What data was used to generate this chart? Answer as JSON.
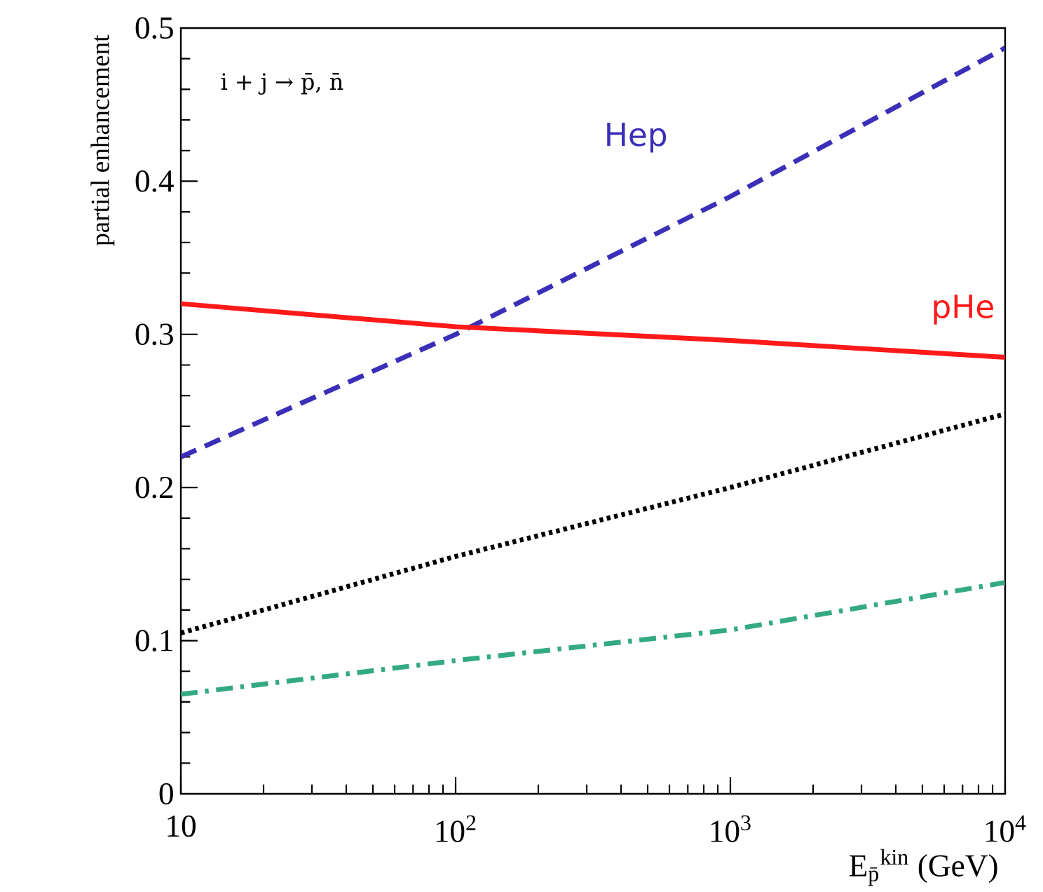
{
  "chart_data": {
    "type": "line",
    "ylabel": "partial enhancement",
    "xlabel": "E$_{p̄}$$^{kin}$ (GeV)",
    "log": "x",
    "grid": false,
    "x": [
      10,
      100,
      1000,
      10000
    ],
    "xlim": [
      10,
      10000
    ],
    "ylim": [
      0,
      0.5
    ],
    "xticks": [
      10,
      {
        "value": 100,
        "label": "10$^{2}$"
      },
      {
        "value": 1000,
        "label": "10$^{3}$"
      },
      {
        "value": 10000,
        "label": "10$^{4}$"
      }
    ],
    "yticks": [
      0,
      0.1,
      0.2,
      0.3,
      0.4,
      0.5
    ],
    "annotations": [
      "i + j → p̄, n̄"
    ],
    "series": [
      {
        "name": "Hep",
        "color": "#3b2fb8",
        "line_style": "dashed",
        "values": [
          0.22,
          0.3,
          0.39,
          0.487
        ]
      },
      {
        "name": "pHe",
        "color": "#ff1a1a",
        "line_style": "solid",
        "values": [
          0.32,
          0.305,
          0.296,
          0.285
        ]
      },
      {
        "color": "#000000",
        "line_style": "dotted",
        "values": [
          0.105,
          0.155,
          0.2,
          0.248
        ]
      },
      {
        "color": "#33aa7f",
        "line_style": "dashdot",
        "values": [
          0.065,
          0.087,
          0.107,
          0.138
        ]
      }
    ]
  }
}
